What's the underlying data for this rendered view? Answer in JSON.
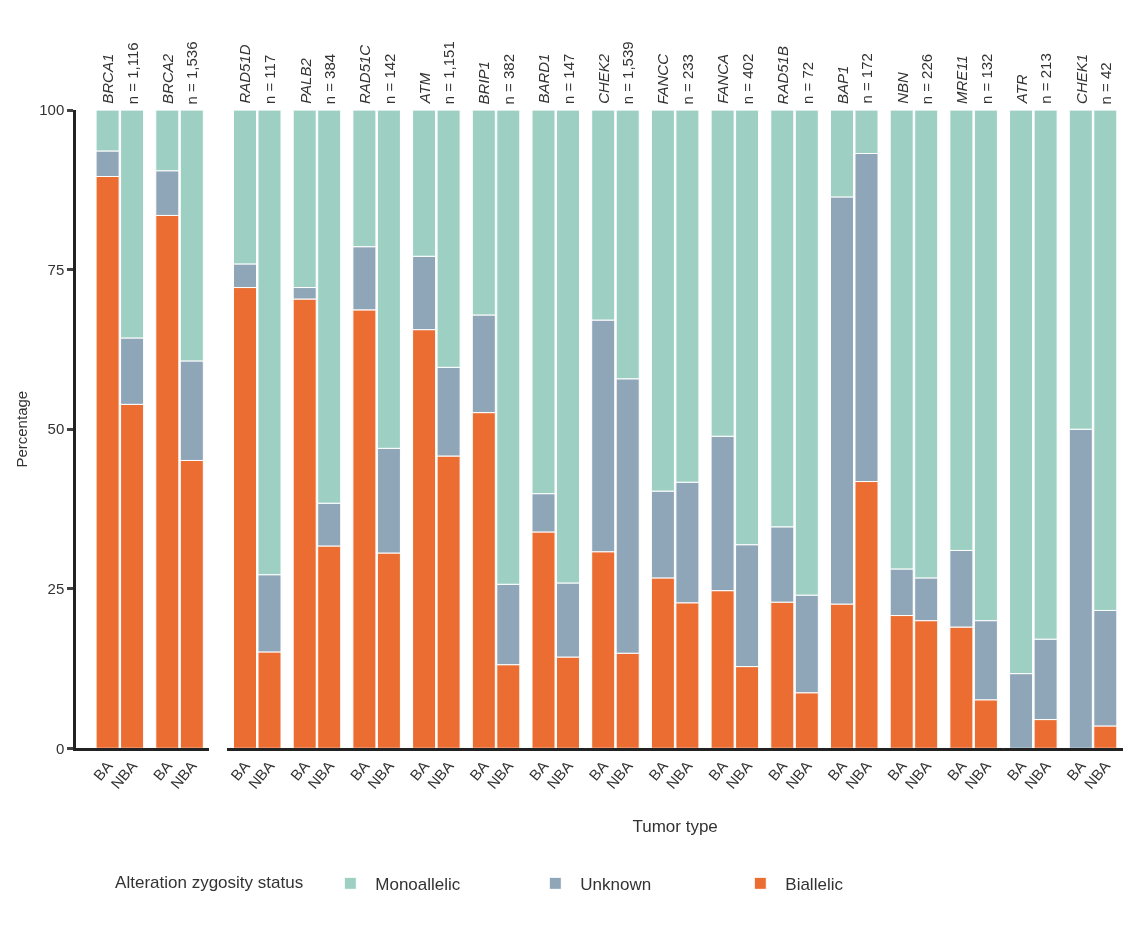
{
  "chart_data": [
    {
      "type": "bar",
      "title": "BRCA1",
      "subtitle": "n = 1,116",
      "categories": [
        "BA",
        "NBA"
      ],
      "stacked": true,
      "ylim": [
        0,
        100
      ],
      "yticks": [
        0,
        25,
        50,
        75,
        100
      ],
      "ylabel": "Percentage",
      "legend": "bottom",
      "legend_title": "Alteration zygosity status",
      "series": [
        {
          "name": "Biallelic",
          "color": "#ec6d31",
          "values": [
            89.6,
            53.9
          ]
        },
        {
          "name": "Unknown",
          "color": "#8fa5b8",
          "values": [
            4.0,
            10.4
          ]
        },
        {
          "name": "Monoallelic",
          "color": "#9ecfc3",
          "values": [
            6.4,
            35.7
          ]
        }
      ]
    },
    {
      "type": "bar",
      "title": "BRCA2",
      "subtitle": "n = 1,536",
      "categories": [
        "BA",
        "NBA"
      ],
      "stacked": true,
      "ylim": [
        0,
        100
      ],
      "tick_labels": "x",
      "series": [
        {
          "color": "#ec6d31",
          "values": [
            83.5,
            45.1
          ]
        },
        {
          "color": "#8fa5b8",
          "values": [
            7.0,
            15.6
          ]
        },
        {
          "color": "#9ecfc3",
          "values": [
            9.5,
            39.3
          ]
        }
      ]
    },
    {
      "type": "bar",
      "title": "RAD51D",
      "subtitle": "n = 117",
      "categories": [
        "BA",
        "NBA"
      ],
      "stacked": true,
      "ylim": [
        0,
        100
      ],
      "tick_labels": "x",
      "series": [
        {
          "color": "#ec6d31",
          "values": [
            72.2,
            15.1
          ]
        },
        {
          "color": "#8fa5b8",
          "values": [
            3.7,
            12.1
          ]
        },
        {
          "color": "#9ecfc3",
          "values": [
            24.1,
            72.8
          ]
        }
      ]
    },
    {
      "type": "bar",
      "title": "PALB2",
      "subtitle": "n = 384",
      "categories": [
        "BA",
        "NBA"
      ],
      "stacked": true,
      "ylim": [
        0,
        100
      ],
      "tick_labels": "x",
      "series": [
        {
          "color": "#ec6d31",
          "values": [
            70.4,
            31.7
          ]
        },
        {
          "color": "#8fa5b8",
          "values": [
            1.8,
            6.7
          ]
        },
        {
          "color": "#9ecfc3",
          "values": [
            27.8,
            61.6
          ]
        }
      ]
    },
    {
      "type": "bar",
      "title": "RAD51C",
      "subtitle": "n = 142",
      "categories": [
        "BA",
        "NBA"
      ],
      "stacked": true,
      "ylim": [
        0,
        100
      ],
      "tick_labels": "x",
      "series": [
        {
          "color": "#ec6d31",
          "values": [
            68.7,
            30.6
          ]
        },
        {
          "color": "#8fa5b8",
          "values": [
            9.9,
            16.4
          ]
        },
        {
          "color": "#9ecfc3",
          "values": [
            21.4,
            53.0
          ]
        }
      ]
    },
    {
      "type": "bar",
      "title": "ATM",
      "subtitle": "n = 1,151",
      "categories": [
        "BA",
        "NBA"
      ],
      "stacked": true,
      "ylim": [
        0,
        100
      ],
      "tick_labels": "x",
      "series": [
        {
          "color": "#ec6d31",
          "values": [
            65.6,
            45.8
          ]
        },
        {
          "color": "#8fa5b8",
          "values": [
            11.5,
            13.9
          ]
        },
        {
          "color": "#9ecfc3",
          "values": [
            22.9,
            40.3
          ]
        }
      ]
    },
    {
      "type": "bar",
      "title": "BRIP1",
      "subtitle": "n = 382",
      "categories": [
        "BA",
        "NBA"
      ],
      "stacked": true,
      "ylim": [
        0,
        100
      ],
      "tick_labels": "x",
      "series": [
        {
          "color": "#ec6d31",
          "values": [
            52.6,
            13.1
          ]
        },
        {
          "color": "#8fa5b8",
          "values": [
            15.3,
            12.6
          ]
        },
        {
          "color": "#9ecfc3",
          "values": [
            32.1,
            74.3
          ]
        }
      ]
    },
    {
      "type": "bar",
      "title": "BARD1",
      "subtitle": "n = 147",
      "categories": [
        "BA",
        "NBA"
      ],
      "stacked": true,
      "ylim": [
        0,
        100
      ],
      "tick_labels": "x",
      "series": [
        {
          "color": "#ec6d31",
          "values": [
            33.9,
            14.3
          ]
        },
        {
          "color": "#8fa5b8",
          "values": [
            6.0,
            11.6
          ]
        },
        {
          "color": "#9ecfc3",
          "values": [
            60.1,
            74.1
          ]
        }
      ]
    },
    {
      "type": "bar",
      "title": "CHEK2",
      "subtitle": "n = 1,539",
      "categories": [
        "BA",
        "NBA"
      ],
      "stacked": true,
      "ylim": [
        0,
        100
      ],
      "tick_labels": "x",
      "series": [
        {
          "color": "#ec6d31",
          "values": [
            30.8,
            14.9
          ]
        },
        {
          "color": "#8fa5b8",
          "values": [
            36.3,
            43.0
          ]
        },
        {
          "color": "#9ecfc3",
          "values": [
            32.9,
            42.1
          ]
        }
      ]
    },
    {
      "type": "bar",
      "title": "FANCC",
      "subtitle": "n = 233",
      "categories": [
        "BA",
        "NBA"
      ],
      "stacked": true,
      "ylim": [
        0,
        100
      ],
      "tick_labels": "x",
      "xlabel": "Tumor type",
      "series": [
        {
          "color": "#ec6d31",
          "values": [
            26.7,
            22.8
          ]
        },
        {
          "color": "#8fa5b8",
          "values": [
            13.6,
            18.9
          ]
        },
        {
          "color": "#9ecfc3",
          "values": [
            59.7,
            58.3
          ]
        }
      ]
    },
    {
      "type": "bar",
      "title": "FANCA",
      "subtitle": "n = 402",
      "categories": [
        "BA",
        "NBA"
      ],
      "stacked": true,
      "ylim": [
        0,
        100
      ],
      "tick_labels": "x",
      "series": [
        {
          "color": "#ec6d31",
          "values": [
            24.7,
            12.8
          ]
        },
        {
          "color": "#8fa5b8",
          "values": [
            24.2,
            19.1
          ]
        },
        {
          "color": "#9ecfc3",
          "values": [
            51.1,
            68.1
          ]
        }
      ]
    },
    {
      "type": "bar",
      "title": "RAD51B",
      "subtitle": "n = 72",
      "categories": [
        "BA",
        "NBA"
      ],
      "stacked": true,
      "ylim": [
        0,
        100
      ],
      "tick_labels": "x",
      "series": [
        {
          "color": "#ec6d31",
          "values": [
            22.9,
            8.7
          ]
        },
        {
          "color": "#8fa5b8",
          "values": [
            11.8,
            15.3
          ]
        },
        {
          "color": "#9ecfc3",
          "values": [
            65.3,
            76.0
          ]
        }
      ]
    },
    {
      "type": "bar",
      "title": "BAP1",
      "subtitle": "n = 172",
      "categories": [
        "BA",
        "NBA"
      ],
      "stacked": true,
      "ylim": [
        0,
        100
      ],
      "tick_labels": "x",
      "series": [
        {
          "color": "#ec6d31",
          "values": [
            22.6,
            41.8
          ]
        },
        {
          "color": "#8fa5b8",
          "values": [
            63.8,
            51.4
          ]
        },
        {
          "color": "#9ecfc3",
          "values": [
            13.6,
            6.8
          ]
        }
      ]
    },
    {
      "type": "bar",
      "title": "NBN",
      "subtitle": "n = 226",
      "categories": [
        "BA",
        "NBA"
      ],
      "stacked": true,
      "ylim": [
        0,
        100
      ],
      "tick_labels": "x",
      "series": [
        {
          "color": "#ec6d31",
          "values": [
            20.8,
            20.0
          ]
        },
        {
          "color": "#8fa5b8",
          "values": [
            7.3,
            6.7
          ]
        },
        {
          "color": "#9ecfc3",
          "values": [
            71.9,
            73.3
          ]
        }
      ]
    },
    {
      "type": "bar",
      "title": "MRE11",
      "subtitle": "n = 132",
      "categories": [
        "BA",
        "NBA"
      ],
      "stacked": true,
      "ylim": [
        0,
        100
      ],
      "tick_labels": "x",
      "series": [
        {
          "color": "#ec6d31",
          "values": [
            19.0,
            7.6
          ]
        },
        {
          "color": "#8fa5b8",
          "values": [
            12.0,
            12.4
          ]
        },
        {
          "color": "#9ecfc3",
          "values": [
            69.0,
            80.0
          ]
        }
      ]
    },
    {
      "type": "bar",
      "title": "ATR",
      "subtitle": "n = 213",
      "categories": [
        "BA",
        "NBA"
      ],
      "stacked": true,
      "ylim": [
        0,
        100
      ],
      "tick_labels": "x",
      "series": [
        {
          "color": "#ec6d31",
          "values": [
            0,
            4.5
          ]
        },
        {
          "color": "#8fa5b8",
          "values": [
            11.7,
            12.6
          ]
        },
        {
          "color": "#9ecfc3",
          "values": [
            88.3,
            82.9
          ]
        }
      ]
    },
    {
      "type": "bar",
      "title": "CHEK1",
      "subtitle": "n = 42",
      "categories": [
        "BA",
        "NBA"
      ],
      "stacked": true,
      "ylim": [
        0,
        100
      ],
      "tick_labels": "x",
      "series": [
        {
          "color": "#ec6d31",
          "values": [
            0,
            3.5
          ]
        },
        {
          "color": "#8fa5b8",
          "values": [
            50.0,
            18.1
          ]
        },
        {
          "color": "#9ecfc3",
          "values": [
            50.0,
            78.4
          ]
        }
      ]
    }
  ]
}
